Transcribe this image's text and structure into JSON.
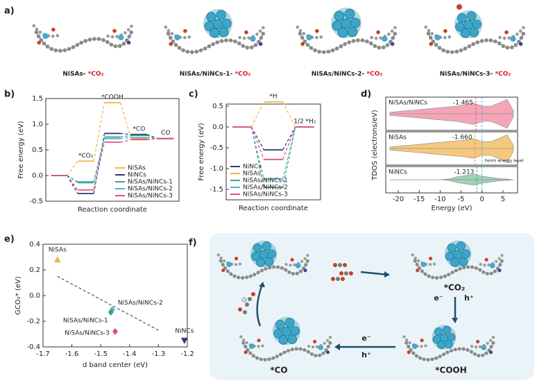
{
  "panel_labels": [
    "a)",
    "b)",
    "c)",
    "d)",
    "e)",
    "f)"
  ],
  "structures": [
    {
      "name": "NiSAs- ",
      "adsorbate": "*CO₂"
    },
    {
      "name": "NiSAs/NiNCs-1- ",
      "adsorbate": "*CO₂"
    },
    {
      "name": "NiSAs/NiNCs-2- ",
      "adsorbate": "*CO₂"
    },
    {
      "name": "NiSAs/NiNCs-3- ",
      "adsorbate": "*CO₂"
    }
  ],
  "chart_data": [
    {
      "type": "energy_diagram",
      "xlabel": "Reaction coordinate",
      "ylabel": "Free energy (eV)",
      "categories": [
        null,
        "*CO₂",
        "*COOH",
        "*CO",
        "CO"
      ],
      "ylim": [
        -0.5,
        1.5
      ],
      "yticks": [
        -0.5,
        {
          "value": 0,
          "label": "0.0"
        },
        0.5,
        {
          "value": 1,
          "label": "1.0"
        },
        1.5
      ],
      "legend": "lower right",
      "series": [
        {
          "name": "NiSAs",
          "color": "#f0b54a",
          "values": [
            0,
            0.28,
            1.42,
            0.72,
            0.72
          ]
        },
        {
          "name": "NiNCs",
          "color": "#2a3a7a",
          "values": [
            0,
            -0.35,
            0.82,
            0.8,
            0.72
          ]
        },
        {
          "name": "NiSAs/NiNCs-1",
          "color": "#3aa57a",
          "values": [
            0,
            -0.14,
            0.75,
            0.78,
            0.72
          ]
        },
        {
          "name": "NiSAs/NiNCs-2",
          "color": "#4bb3d6",
          "values": [
            0,
            -0.12,
            0.72,
            0.74,
            0.72
          ]
        },
        {
          "name": "NiSAs/NiNCs-3",
          "color": "#e0507a",
          "values": [
            0,
            -0.28,
            0.65,
            0.7,
            0.72
          ]
        }
      ]
    },
    {
      "type": "energy_diagram",
      "xlabel": "Reaction coordinate",
      "ylabel": "Free energy (eV)",
      "categories": [
        null,
        "*H",
        "1/2 *H₂"
      ],
      "ylim": [
        -1.75,
        0.55
      ],
      "yticks": [
        -1.5,
        {
          "value": -1,
          "label": "-1.0"
        },
        -0.5,
        {
          "value": 0,
          "label": "0.0"
        },
        0.5
      ],
      "legend": "lower left",
      "series": [
        {
          "name": "NiNCs",
          "color": "#2a3a7a",
          "values": [
            0,
            -0.55,
            0
          ]
        },
        {
          "name": "NiSAs",
          "color": "#f0b54a",
          "values": [
            0,
            0.6,
            0
          ]
        },
        {
          "name": "NiSAs/NiNCs-1",
          "color": "#3aa57a",
          "values": [
            0,
            -1.45,
            0
          ]
        },
        {
          "name": "NiSAs/NiNCs-2",
          "color": "#4bb3d6",
          "values": [
            0,
            -1.25,
            0
          ]
        },
        {
          "name": "NiSAs/NiNCs-3",
          "color": "#e0507a",
          "values": [
            0,
            -0.78,
            0
          ]
        }
      ]
    },
    {
      "type": "dos",
      "xlabel": "Energy (eV)",
      "ylabel": "TDOS (electrons/eV)",
      "xlim": [
        -23,
        8.5
      ],
      "xticks": [
        -20,
        -15,
        -10,
        -5,
        0,
        5
      ],
      "fermi_level": 0,
      "fermi_label": "Fermi energy level",
      "x": [
        -22,
        -20,
        -18,
        -16,
        -14,
        -12,
        -10,
        -8,
        -6,
        -4,
        -2,
        0,
        2,
        4,
        6,
        7.5
      ],
      "panels": [
        {
          "name": "NiSAs/NiNCs",
          "color": "#f4a6b8",
          "label_color": "#e0507a",
          "d_band_center": {
            "value": -1.465,
            "label": "-1.465"
          },
          "values": [
            0.1,
            0.15,
            0.2,
            0.25,
            0.3,
            0.35,
            0.4,
            0.45,
            0.5,
            0.6,
            0.7,
            0.5,
            0.5,
            0.7,
            0.95,
            0.2
          ]
        },
        {
          "name": "NiSAs",
          "color": "#f6c77e",
          "label_color": "#e0a030",
          "d_band_center": {
            "value": -1.66,
            "label": "-1.660"
          },
          "values": [
            0.1,
            0.15,
            0.2,
            0.25,
            0.3,
            0.35,
            0.4,
            0.45,
            0.5,
            0.55,
            0.65,
            0.45,
            0.45,
            0.65,
            0.9,
            0.2
          ]
        },
        {
          "name": "NiNCs",
          "color": "#9fd3b8",
          "label_color": "#3aa57a",
          "d_band_center": {
            "value": -1.213,
            "label": "-1.213"
          },
          "values": [
            0,
            0,
            0,
            0,
            0,
            0,
            0,
            0.05,
            0.25,
            0.35,
            0.45,
            0.3,
            0.2,
            0.1,
            0.05,
            0
          ]
        }
      ]
    },
    {
      "type": "scatter",
      "xlabel": "d band center (eV)",
      "ylabel": "GCO₂* (eV)",
      "xlim": [
        -1.7,
        -1.2
      ],
      "xticks": [
        -1.7,
        -1.6,
        -1.5,
        -1.4,
        -1.3,
        -1.2
      ],
      "ylim": [
        -0.4,
        0.4
      ],
      "yticks": [
        -0.4,
        -0.2,
        {
          "value": 0,
          "label": "0.0"
        },
        0.2,
        0.4
      ],
      "series": [
        {
          "name": "NiSAs",
          "color": "#f0b54a",
          "marker": "triangle-up",
          "x": [
            -1.65
          ],
          "values": [
            0.28
          ]
        },
        {
          "name": "NiSAs/NiNCs-2",
          "color": "#4bb3d6",
          "marker": "diamond",
          "x": [
            -1.46
          ],
          "values": [
            -0.11
          ]
        },
        {
          "name": "NiSAs/NiNCs-1",
          "color": "#3aa57a",
          "marker": "diamond",
          "x": [
            -1.465
          ],
          "values": [
            -0.13
          ]
        },
        {
          "name": "NiSAs/NiNCs-3",
          "color": "#e0507a",
          "marker": "diamond",
          "x": [
            -1.45
          ],
          "values": [
            -0.28
          ]
        },
        {
          "name": "NiNCs",
          "color": "#2a3a7a",
          "marker": "triangle-down",
          "x": [
            -1.21
          ],
          "values": [
            -0.35
          ]
        }
      ],
      "fit": {
        "x": [
          -1.65,
          -1.3
        ],
        "values": [
          0.15,
          -0.27
        ]
      }
    }
  ],
  "cycle": {
    "states": [
      "*CO₂",
      "*COOH",
      "*CO"
    ],
    "steps": [
      "e⁻",
      "h⁺",
      "e⁻",
      "h⁺"
    ]
  }
}
